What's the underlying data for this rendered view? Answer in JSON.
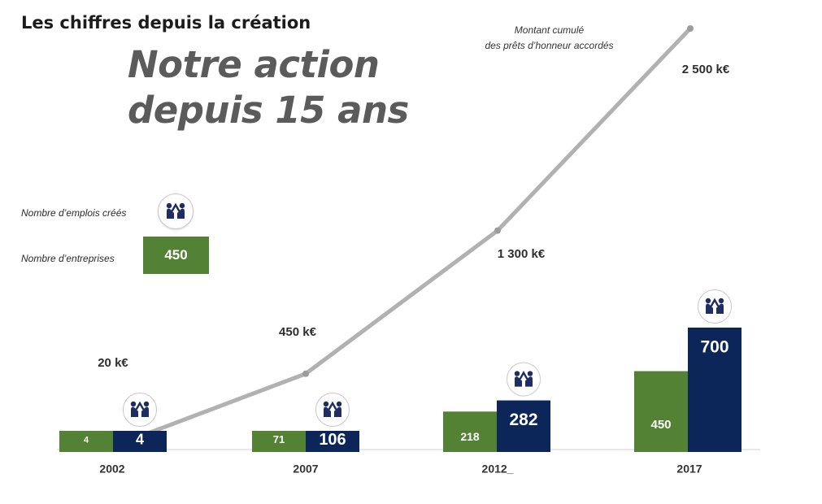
{
  "header": {
    "subtitle": "Les chiffres depuis la création"
  },
  "hero": {
    "line1": "Notre action",
    "line2": "depuis 15 ans"
  },
  "legend": {
    "jobs_label": "Nombre d’emplois créés",
    "companies_label": "Nombre d’entreprises",
    "companies_sample": "450"
  },
  "chart_data": {
    "type": "bar",
    "categories": [
      "2002",
      "2007",
      "2012_",
      "2017"
    ],
    "series": [
      {
        "name": "Nombre d’entreprises",
        "values": [
          4,
          71,
          218,
          450
        ],
        "labels": [
          "4",
          "71",
          "218",
          "450"
        ],
        "color": "#548235"
      },
      {
        "name": "Nombre d’emplois créés",
        "values": [
          4,
          106,
          282,
          700
        ],
        "labels": [
          "4",
          "106",
          "282",
          "700"
        ],
        "color": "#0d2659"
      }
    ],
    "line": {
      "name": "Montant cumulé des prêts d’honneur accordés",
      "title_lines": [
        "Montant cumulé",
        "des prêts d’honneur accordés"
      ],
      "values": [
        20,
        450,
        1300,
        2500
      ],
      "labels": [
        "20 k€",
        "450 k€",
        "1 300 k€",
        "2 500 k€"
      ],
      "unit": "k€",
      "color": "#a8a8a8"
    }
  }
}
